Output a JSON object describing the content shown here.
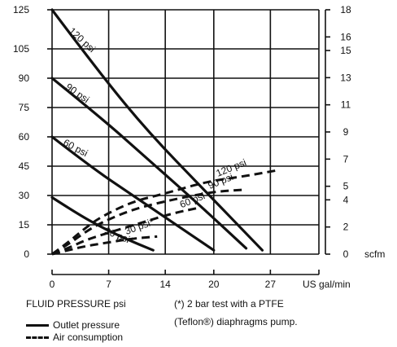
{
  "chart_data": {
    "type": "line",
    "x_axis": {
      "label": "US gal/min",
      "ticks": [
        0,
        7,
        14,
        20,
        27
      ],
      "range": [
        0,
        33
      ]
    },
    "y_axis_left": {
      "label": "FLUID PRESSURE psi",
      "ticks": [
        0,
        15,
        30,
        45,
        60,
        75,
        90,
        105,
        125
      ],
      "range": [
        0,
        125
      ]
    },
    "y_axis_right": {
      "label": "scfm",
      "ticks": [
        0,
        2,
        4,
        5,
        7,
        9,
        11,
        13,
        15,
        16,
        18
      ],
      "range": [
        0,
        18
      ]
    },
    "grid": true,
    "series": [
      {
        "name": "120 psi",
        "kind": "Outlet pressure",
        "style": "solid",
        "x": [
          0,
          6,
          12,
          19,
          26
        ],
        "y": [
          125,
          92,
          62,
          32,
          2
        ]
      },
      {
        "name": "90 psi",
        "kind": "Outlet pressure",
        "style": "solid",
        "x": [
          0,
          6,
          12,
          18,
          24
        ],
        "y": [
          90,
          70,
          48,
          26,
          3
        ]
      },
      {
        "name": "60 psi",
        "kind": "Outlet pressure",
        "style": "solid",
        "x": [
          0,
          5,
          10,
          15,
          20
        ],
        "y": [
          60,
          44,
          30,
          16,
          2
        ]
      },
      {
        "name": "30 psi*",
        "kind": "Outlet pressure",
        "style": "solid",
        "x": [
          0,
          3,
          6,
          9,
          12.5
        ],
        "y": [
          29,
          21,
          14,
          8,
          2
        ]
      },
      {
        "name": "120 psi",
        "kind": "Air consumption",
        "style": "dashed",
        "x": [
          0,
          2,
          4,
          6,
          10,
          14,
          19,
          24,
          28
        ],
        "y": [
          0,
          6,
          13,
          19,
          27,
          31,
          37,
          40,
          43
        ]
      },
      {
        "name": "90 psi",
        "kind": "Air consumption",
        "style": "dashed",
        "x": [
          0,
          2,
          4,
          6,
          10,
          15,
          20,
          24
        ],
        "y": [
          0,
          5,
          11,
          16,
          23,
          28,
          32,
          33
        ]
      },
      {
        "name": "60 psi",
        "kind": "Air consumption",
        "style": "dashed",
        "x": [
          0,
          2,
          4,
          7,
          11,
          15,
          18.5
        ],
        "y": [
          0,
          3,
          7,
          11,
          16,
          21,
          24
        ]
      },
      {
        "name": "30 psi*",
        "kind": "Air consumption",
        "style": "dashed",
        "x": [
          0,
          2,
          4,
          7,
          10,
          13
        ],
        "y": [
          0,
          2,
          4,
          6,
          8,
          9
        ]
      }
    ],
    "legend": {
      "title": "FLUID PRESSURE psi",
      "items": [
        {
          "label": "Outlet pressure",
          "style": "solid"
        },
        {
          "label": "Air consumption",
          "style": "dashed"
        }
      ]
    },
    "note": [
      "(*) 2 bar test with a PTFE",
      "(Teflon®) diaphragms pump."
    ]
  }
}
